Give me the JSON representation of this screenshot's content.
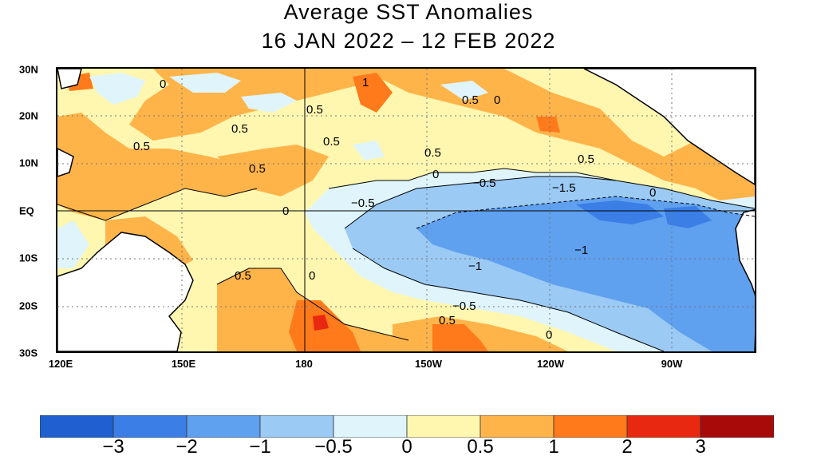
{
  "title": {
    "line1": "Average SST Anomalies",
    "line2": "16 JAN 2022 – 12 FEB 2022"
  },
  "map": {
    "lat_labels": [
      "30N",
      "20N",
      "10N",
      "EQ",
      "10S",
      "20S",
      "30S"
    ],
    "lon_labels": [
      "120E",
      "150E",
      "180",
      "150W",
      "120W",
      "90W"
    ],
    "contour_labels": [
      "0",
      "1",
      "0.5",
      "0.5",
      "0.5",
      "0",
      "0.5",
      "0.5",
      "0.5",
      "0.5",
      "0.5",
      "0",
      "−0.5",
      "−0.5",
      "0",
      "−1.5",
      "0",
      "0",
      "−1",
      "−1",
      "0.5",
      "0",
      "−0.5",
      "0.5",
      "0"
    ]
  },
  "legend": {
    "colors": [
      "#1f5fd0",
      "#3a7ee6",
      "#5fa0ef",
      "#9bcaf4",
      "#dff5fb",
      "#fff7b0",
      "#ffb44a",
      "#ff7a1a",
      "#e82810",
      "#a80a0a"
    ],
    "labels": [
      "−3",
      "−2",
      "−1",
      "−0.5",
      "0",
      "0.5",
      "1",
      "2",
      "3"
    ]
  },
  "colors": {
    "land": "#ffffff",
    "coast": "#000000"
  }
}
